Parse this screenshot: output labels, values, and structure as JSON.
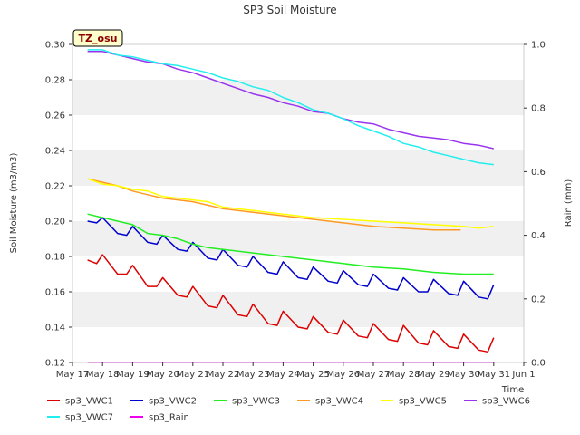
{
  "chart_data": {
    "type": "line",
    "title": "SP3 Soil Moisture",
    "badge": "TZ_osu",
    "xlabel": "Time",
    "ylabel": "Soil Moisture (m3/m3)",
    "y2label": "Rain (mm)",
    "xlim": [
      17,
      32
    ],
    "ylim": [
      0.12,
      0.3
    ],
    "y2lim": [
      0.0,
      1.0
    ],
    "x_ticks": [
      17,
      18,
      19,
      20,
      21,
      22,
      23,
      24,
      25,
      26,
      27,
      28,
      29,
      30,
      31,
      32
    ],
    "x_tick_labels": [
      "May 17",
      "May 18",
      "May 19",
      "May 20",
      "May 21",
      "May 22",
      "May 23",
      "May 24",
      "May 25",
      "May 26",
      "May 27",
      "May 28",
      "May 29",
      "May 30",
      "May 31",
      "Jun 1"
    ],
    "y_ticks": [
      0.12,
      0.14,
      0.16,
      0.18,
      0.2,
      0.22,
      0.24,
      0.26,
      0.28,
      0.3
    ],
    "y_tick_labels": [
      "0.12",
      "0.14",
      "0.16",
      "0.18",
      "0.20",
      "0.22",
      "0.24",
      "0.26",
      "0.28",
      "0.30"
    ],
    "y2_ticks": [
      0.0,
      0.2,
      0.4,
      0.6,
      0.8,
      1.0
    ],
    "y2_tick_labels": [
      "0.0",
      "0.2",
      "0.4",
      "0.6",
      "0.8",
      "1.0"
    ],
    "series": [
      {
        "name": "sp3_VWC1",
        "color": "#dd0000",
        "axis": "left",
        "x": [
          17.5,
          17.8,
          18.0,
          18.5,
          18.8,
          19.0,
          19.5,
          19.8,
          20.0,
          20.5,
          20.8,
          21.0,
          21.5,
          21.8,
          22.0,
          22.5,
          22.8,
          23.0,
          23.5,
          23.8,
          24.0,
          24.5,
          24.8,
          25.0,
          25.5,
          25.8,
          26.0,
          26.5,
          26.8,
          27.0,
          27.5,
          27.8,
          28.0,
          28.5,
          28.8,
          29.0,
          29.5,
          29.8,
          30.0,
          30.5,
          30.8,
          31.0
        ],
        "y": [
          0.178,
          0.176,
          0.181,
          0.17,
          0.17,
          0.175,
          0.163,
          0.163,
          0.168,
          0.158,
          0.157,
          0.163,
          0.152,
          0.151,
          0.158,
          0.147,
          0.146,
          0.153,
          0.142,
          0.141,
          0.149,
          0.14,
          0.139,
          0.146,
          0.137,
          0.136,
          0.144,
          0.135,
          0.134,
          0.142,
          0.133,
          0.132,
          0.141,
          0.131,
          0.13,
          0.138,
          0.129,
          0.128,
          0.136,
          0.127,
          0.126,
          0.134
        ]
      },
      {
        "name": "sp3_VWC2",
        "color": "#0000cc",
        "axis": "left",
        "x": [
          17.5,
          17.8,
          18.0,
          18.5,
          18.8,
          19.0,
          19.5,
          19.8,
          20.0,
          20.5,
          20.8,
          21.0,
          21.5,
          21.8,
          22.0,
          22.5,
          22.8,
          23.0,
          23.5,
          23.8,
          24.0,
          24.5,
          24.8,
          25.0,
          25.5,
          25.8,
          26.0,
          26.5,
          26.8,
          27.0,
          27.5,
          27.8,
          28.0,
          28.5,
          28.8,
          29.0,
          29.5,
          29.8,
          30.0,
          30.5,
          30.8,
          31.0
        ],
        "y": [
          0.2,
          0.199,
          0.202,
          0.193,
          0.192,
          0.197,
          0.188,
          0.187,
          0.192,
          0.184,
          0.183,
          0.188,
          0.179,
          0.178,
          0.184,
          0.175,
          0.174,
          0.18,
          0.171,
          0.17,
          0.177,
          0.168,
          0.167,
          0.174,
          0.166,
          0.165,
          0.172,
          0.164,
          0.163,
          0.17,
          0.162,
          0.161,
          0.168,
          0.16,
          0.16,
          0.167,
          0.159,
          0.158,
          0.166,
          0.157,
          0.156,
          0.164
        ]
      },
      {
        "name": "sp3_VWC3",
        "color": "#22ee22",
        "axis": "left",
        "x": [
          17.5,
          18.0,
          18.5,
          19.0,
          19.5,
          20.0,
          20.5,
          21.0,
          21.5,
          22.0,
          23.0,
          24.0,
          25.0,
          26.0,
          27.0,
          28.0,
          29.0,
          30.0,
          31.0
        ],
        "y": [
          0.204,
          0.202,
          0.2,
          0.198,
          0.193,
          0.192,
          0.19,
          0.187,
          0.185,
          0.184,
          0.182,
          0.18,
          0.178,
          0.176,
          0.174,
          0.173,
          0.171,
          0.17,
          0.17
        ]
      },
      {
        "name": "sp3_VWC4",
        "color": "#ff9922",
        "axis": "left",
        "x": [
          17.5,
          18.0,
          18.5,
          19.0,
          19.5,
          20.0,
          20.5,
          21.0,
          21.5,
          22.0,
          23.0,
          24.0,
          25.0,
          26.0,
          27.0,
          28.0,
          29.0,
          29.9
        ],
        "y": [
          0.224,
          0.222,
          0.22,
          0.217,
          0.215,
          0.213,
          0.212,
          0.211,
          0.209,
          0.207,
          0.205,
          0.203,
          0.201,
          0.199,
          0.197,
          0.196,
          0.195,
          0.195
        ]
      },
      {
        "name": "sp3_VWC5",
        "color": "#ffff00",
        "axis": "left",
        "x": [
          17.5,
          18.0,
          18.5,
          19.0,
          19.5,
          20.0,
          20.5,
          21.0,
          21.5,
          22.0,
          23.0,
          24.0,
          25.0,
          26.0,
          27.0,
          28.0,
          29.0,
          30.0,
          30.5,
          31.0
        ],
        "y": [
          0.224,
          0.221,
          0.22,
          0.218,
          0.217,
          0.214,
          0.213,
          0.212,
          0.211,
          0.208,
          0.206,
          0.204,
          0.202,
          0.201,
          0.2,
          0.199,
          0.198,
          0.197,
          0.196,
          0.197
        ]
      },
      {
        "name": "sp3_VWC6",
        "color": "#9933ee",
        "axis": "left",
        "x": [
          17.5,
          18.0,
          18.5,
          19.0,
          19.5,
          20.0,
          20.5,
          21.0,
          21.5,
          22.0,
          22.5,
          23.0,
          23.5,
          24.0,
          24.5,
          25.0,
          25.5,
          26.0,
          26.5,
          27.0,
          27.5,
          28.0,
          28.5,
          29.0,
          29.5,
          30.0,
          30.5,
          31.0
        ],
        "y": [
          0.296,
          0.296,
          0.294,
          0.292,
          0.29,
          0.289,
          0.286,
          0.284,
          0.281,
          0.278,
          0.275,
          0.272,
          0.27,
          0.267,
          0.265,
          0.262,
          0.261,
          0.258,
          0.256,
          0.255,
          0.252,
          0.25,
          0.248,
          0.247,
          0.246,
          0.244,
          0.243,
          0.241
        ]
      },
      {
        "name": "sp3_VWC7",
        "color": "#22eeee",
        "axis": "left",
        "x": [
          17.5,
          18.0,
          18.5,
          19.0,
          19.5,
          20.0,
          20.5,
          21.0,
          21.5,
          22.0,
          22.5,
          23.0,
          23.5,
          24.0,
          24.5,
          25.0,
          25.5,
          26.0,
          26.5,
          27.0,
          27.5,
          28.0,
          28.5,
          29.0,
          29.5,
          30.0,
          30.5,
          31.0
        ],
        "y": [
          0.297,
          0.297,
          0.294,
          0.293,
          0.291,
          0.289,
          0.288,
          0.286,
          0.284,
          0.281,
          0.279,
          0.276,
          0.274,
          0.27,
          0.267,
          0.263,
          0.261,
          0.258,
          0.254,
          0.251,
          0.248,
          0.244,
          0.242,
          0.239,
          0.237,
          0.235,
          0.233,
          0.232
        ]
      },
      {
        "name": "sp3_Rain",
        "color": "#ee00ee",
        "axis": "right",
        "x": [
          17.5,
          31.0
        ],
        "y": [
          0.0,
          0.0
        ]
      }
    ]
  }
}
